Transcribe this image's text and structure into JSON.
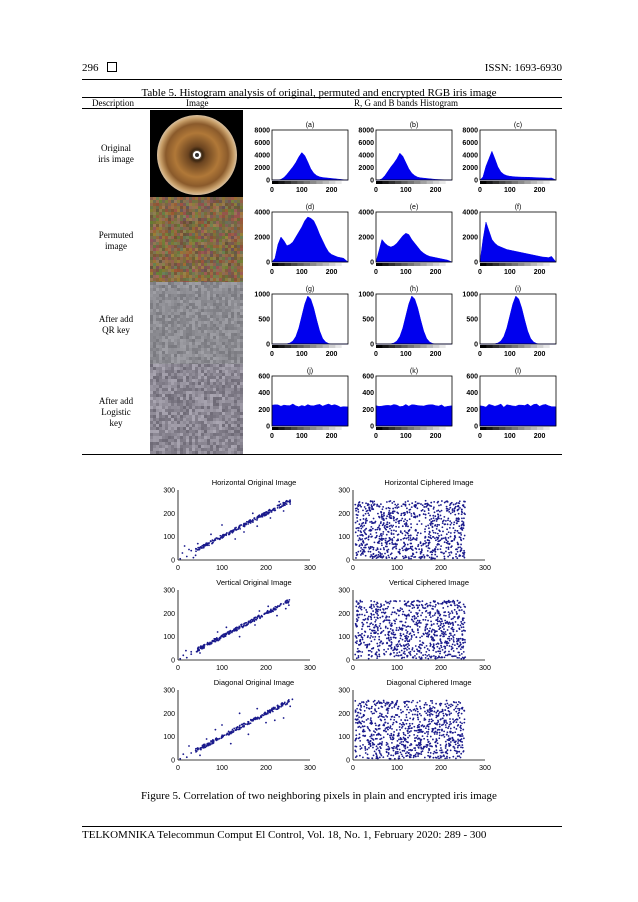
{
  "header": {
    "page_number": "296",
    "issn": "ISSN: 1693-6930"
  },
  "table": {
    "caption": "Table 5. Histogram analysis of original, permuted and encrypted RGB iris image",
    "columns": [
      "Description",
      "Image",
      "R, G and B bands Histogram"
    ],
    "rows": [
      {
        "label": "Original\niris image",
        "panels": [
          "(a)",
          "(b)",
          "(c)"
        ]
      },
      {
        "label": "Permuted\nimage",
        "panels": [
          "(d)",
          "(e)",
          "(f)"
        ]
      },
      {
        "label": "After add\nQR key",
        "panels": [
          "(g)",
          "(h)",
          "(i)"
        ]
      },
      {
        "label": "After add\nLogistic\nkey",
        "panels": [
          "(j)",
          "(k)",
          "(l)"
        ]
      }
    ]
  },
  "colors": {
    "histogram": "#0000ee",
    "scatter": "#1a1a8c",
    "iris_brown": "#8a5a2b",
    "permuted": "#7a6a4a",
    "noise_gray": "#8a8a90"
  },
  "chart_data": [
    {
      "type": "area",
      "panel": "(a)",
      "ylim": [
        0,
        8000
      ],
      "yticks": [
        "0",
        "2000",
        "4000",
        "6000",
        "8000"
      ],
      "xticks": [
        "0",
        "100",
        "200"
      ],
      "x": [
        0,
        10,
        20,
        30,
        40,
        50,
        60,
        70,
        80,
        90,
        100,
        110,
        120,
        130,
        140,
        150,
        160,
        170,
        180,
        190,
        200,
        210,
        220,
        230,
        240,
        255
      ],
      "values": [
        0,
        0,
        0,
        100,
        400,
        900,
        1500,
        2100,
        2800,
        3700,
        4400,
        3900,
        2900,
        1800,
        1100,
        700,
        500,
        400,
        350,
        300,
        250,
        200,
        150,
        100,
        50,
        0
      ]
    },
    {
      "type": "area",
      "panel": "(b)",
      "ylim": [
        0,
        8000
      ],
      "yticks": [
        "0",
        "2000",
        "4000",
        "6000",
        "8000"
      ],
      "xticks": [
        "0",
        "100",
        "200"
      ],
      "x": [
        0,
        10,
        20,
        30,
        40,
        50,
        60,
        70,
        80,
        90,
        100,
        110,
        120,
        130,
        140,
        150,
        160,
        170,
        180,
        190,
        200,
        210,
        220,
        230,
        240,
        255
      ],
      "values": [
        0,
        0,
        200,
        700,
        1400,
        2100,
        2700,
        3400,
        4300,
        3800,
        2800,
        1800,
        1100,
        700,
        450,
        350,
        300,
        250,
        200,
        150,
        100,
        80,
        60,
        40,
        20,
        0
      ]
    },
    {
      "type": "area",
      "panel": "(c)",
      "ylim": [
        0,
        8000
      ],
      "yticks": [
        "0",
        "2000",
        "4000",
        "6000",
        "8000"
      ],
      "xticks": [
        "0",
        "100",
        "200"
      ],
      "x": [
        0,
        10,
        20,
        30,
        40,
        50,
        60,
        70,
        80,
        90,
        100,
        110,
        120,
        130,
        140,
        150,
        160,
        170,
        180,
        190,
        200,
        210,
        220,
        230,
        240,
        255
      ],
      "values": [
        0,
        500,
        2200,
        3400,
        4600,
        3400,
        2100,
        1300,
        900,
        700,
        600,
        550,
        500,
        480,
        460,
        450,
        440,
        420,
        400,
        380,
        360,
        340,
        320,
        300,
        320,
        0
      ]
    },
    {
      "type": "area",
      "panel": "(d)",
      "ylim": [
        0,
        4000
      ],
      "yticks": [
        "0",
        "2000",
        "4000"
      ],
      "xticks": [
        "0",
        "100",
        "200"
      ],
      "x": [
        0,
        10,
        20,
        30,
        40,
        50,
        60,
        70,
        80,
        90,
        100,
        110,
        120,
        130,
        140,
        150,
        160,
        170,
        180,
        190,
        200,
        210,
        220,
        230,
        240,
        255
      ],
      "values": [
        0,
        300,
        1400,
        2000,
        1700,
        1300,
        1400,
        1600,
        2000,
        2400,
        2800,
        3300,
        3600,
        3500,
        3300,
        2800,
        2200,
        1700,
        1200,
        800,
        600,
        500,
        400,
        350,
        300,
        0
      ]
    },
    {
      "type": "area",
      "panel": "(e)",
      "ylim": [
        0,
        4000
      ],
      "yticks": [
        "0",
        "2000",
        "4000"
      ],
      "xticks": [
        "0",
        "100",
        "200"
      ],
      "x": [
        0,
        10,
        20,
        30,
        40,
        50,
        60,
        70,
        80,
        90,
        100,
        110,
        120,
        130,
        140,
        150,
        160,
        170,
        180,
        190,
        200,
        210,
        220,
        230,
        240,
        255
      ],
      "values": [
        0,
        900,
        1800,
        1500,
        1300,
        1200,
        1300,
        1500,
        1800,
        2100,
        2300,
        2200,
        1800,
        1500,
        1200,
        900,
        700,
        550,
        450,
        400,
        350,
        300,
        250,
        200,
        150,
        0
      ]
    },
    {
      "type": "area",
      "panel": "(f)",
      "ylim": [
        0,
        4000
      ],
      "yticks": [
        "0",
        "2000",
        "4000"
      ],
      "xticks": [
        "0",
        "100",
        "200"
      ],
      "x": [
        0,
        10,
        20,
        30,
        40,
        50,
        60,
        70,
        80,
        90,
        100,
        110,
        120,
        130,
        140,
        150,
        160,
        170,
        180,
        190,
        200,
        210,
        220,
        230,
        240,
        255
      ],
      "values": [
        0,
        1800,
        3200,
        2500,
        1800,
        1500,
        1300,
        1200,
        1100,
        1000,
        950,
        900,
        850,
        800,
        750,
        700,
        650,
        600,
        550,
        500,
        450,
        400,
        380,
        350,
        450,
        0
      ]
    },
    {
      "type": "area",
      "panel": "(g)",
      "ylim": [
        0,
        1000
      ],
      "yticks": [
        "0",
        "500",
        "1000"
      ],
      "xticks": [
        "0",
        "100",
        "200"
      ],
      "x": [
        0,
        10,
        20,
        30,
        40,
        50,
        60,
        70,
        80,
        90,
        100,
        110,
        120,
        130,
        140,
        150,
        160,
        170,
        180,
        190,
        200,
        210,
        220,
        230,
        240,
        255
      ],
      "values": [
        0,
        0,
        0,
        0,
        0,
        5,
        20,
        60,
        150,
        320,
        560,
        800,
        960,
        900,
        720,
        480,
        260,
        110,
        40,
        10,
        0,
        0,
        0,
        0,
        0,
        0
      ]
    },
    {
      "type": "area",
      "panel": "(h)",
      "ylim": [
        0,
        1000
      ],
      "yticks": [
        "0",
        "500",
        "1000"
      ],
      "xticks": [
        "0",
        "100",
        "200"
      ],
      "x": [
        0,
        10,
        20,
        30,
        40,
        50,
        60,
        70,
        80,
        90,
        100,
        110,
        120,
        130,
        140,
        150,
        160,
        170,
        180,
        190,
        200,
        210,
        220,
        230,
        240,
        255
      ],
      "values": [
        0,
        0,
        0,
        0,
        0,
        5,
        20,
        60,
        150,
        320,
        560,
        800,
        960,
        900,
        720,
        480,
        260,
        110,
        40,
        10,
        0,
        0,
        0,
        0,
        0,
        0
      ]
    },
    {
      "type": "area",
      "panel": "(i)",
      "ylim": [
        0,
        1000
      ],
      "yticks": [
        "0",
        "500",
        "1000"
      ],
      "xticks": [
        "0",
        "100",
        "200"
      ],
      "x": [
        0,
        10,
        20,
        30,
        40,
        50,
        60,
        70,
        80,
        90,
        100,
        110,
        120,
        130,
        140,
        150,
        160,
        170,
        180,
        190,
        200,
        210,
        220,
        230,
        240,
        255
      ],
      "values": [
        0,
        0,
        0,
        0,
        0,
        5,
        20,
        60,
        150,
        320,
        560,
        800,
        960,
        900,
        720,
        480,
        260,
        110,
        40,
        10,
        0,
        0,
        0,
        0,
        0,
        0
      ]
    },
    {
      "type": "area",
      "panel": "(j)",
      "ylim": [
        0,
        600
      ],
      "yticks": [
        "0",
        "200",
        "400",
        "600"
      ],
      "xticks": [
        "0",
        "100",
        "200"
      ],
      "x": [
        0,
        10,
        20,
        30,
        40,
        50,
        60,
        70,
        80,
        90,
        100,
        110,
        120,
        130,
        140,
        150,
        160,
        170,
        180,
        190,
        200,
        210,
        220,
        230,
        240,
        255
      ],
      "values": [
        240,
        250,
        240,
        245,
        250,
        240,
        245,
        250,
        240,
        245,
        250,
        240,
        245,
        250,
        240,
        245,
        250,
        240,
        245,
        250,
        240,
        245,
        250,
        240,
        245,
        240
      ]
    },
    {
      "type": "area",
      "panel": "(k)",
      "ylim": [
        0,
        600
      ],
      "yticks": [
        "0",
        "200",
        "400",
        "600"
      ],
      "xticks": [
        "0",
        "100",
        "200"
      ],
      "x": [
        0,
        10,
        20,
        30,
        40,
        50,
        60,
        70,
        80,
        90,
        100,
        110,
        120,
        130,
        140,
        150,
        160,
        170,
        180,
        190,
        200,
        210,
        220,
        230,
        240,
        255
      ],
      "values": [
        240,
        250,
        240,
        245,
        250,
        240,
        245,
        250,
        240,
        245,
        250,
        240,
        245,
        250,
        240,
        245,
        250,
        240,
        245,
        250,
        240,
        245,
        250,
        240,
        245,
        240
      ]
    },
    {
      "type": "area",
      "panel": "(l)",
      "ylim": [
        0,
        600
      ],
      "yticks": [
        "0",
        "200",
        "400",
        "600"
      ],
      "xticks": [
        "0",
        "100",
        "200"
      ],
      "x": [
        0,
        10,
        20,
        30,
        40,
        50,
        60,
        70,
        80,
        90,
        100,
        110,
        120,
        130,
        140,
        150,
        160,
        170,
        180,
        190,
        200,
        210,
        220,
        230,
        240,
        255
      ],
      "values": [
        240,
        250,
        240,
        245,
        250,
        240,
        245,
        250,
        240,
        245,
        250,
        240,
        245,
        250,
        240,
        245,
        250,
        240,
        245,
        250,
        240,
        245,
        250,
        240,
        245,
        240
      ]
    },
    {
      "type": "scatter",
      "title": "Horizontal Original Image",
      "xlim": [
        0,
        300
      ],
      "ylim": [
        0,
        300
      ],
      "xticks": [
        "0",
        "100",
        "200",
        "300"
      ],
      "yticks": [
        "0",
        "100",
        "200",
        "300"
      ],
      "x": [
        5,
        10,
        20,
        30,
        45,
        55,
        60,
        70,
        80,
        90,
        100,
        110,
        120,
        130,
        140,
        150,
        160,
        170,
        180,
        190,
        200,
        210,
        220,
        230,
        240,
        250,
        40,
        75,
        130,
        170,
        210,
        240,
        15,
        25,
        100,
        180,
        230,
        255,
        35,
        150
      ],
      "y": [
        5,
        30,
        15,
        40,
        70,
        60,
        62,
        72,
        82,
        92,
        103,
        112,
        121,
        132,
        141,
        152,
        161,
        172,
        182,
        191,
        202,
        212,
        221,
        232,
        241,
        250,
        20,
        110,
        90,
        200,
        180,
        210,
        60,
        45,
        150,
        145,
        250,
        240,
        10,
        120
      ]
    },
    {
      "type": "scatter",
      "title": "Horizontal Ciphered Image",
      "xlim": [
        0,
        300
      ],
      "ylim": [
        0,
        300
      ],
      "xticks": [
        "0",
        "100",
        "200",
        "300"
      ],
      "yticks": [
        "0",
        "100",
        "200",
        "300"
      ],
      "x": [],
      "y": []
    },
    {
      "type": "scatter",
      "title": "Vertical  Original Image",
      "xlim": [
        0,
        300
      ],
      "ylim": [
        0,
        300
      ],
      "xticks": [
        "0",
        "100",
        "200",
        "300"
      ],
      "yticks": [
        "0",
        "100",
        "200",
        "300"
      ],
      "x": [
        5,
        12,
        20,
        30,
        45,
        55,
        60,
        70,
        80,
        90,
        100,
        110,
        120,
        130,
        140,
        150,
        160,
        170,
        180,
        190,
        200,
        210,
        220,
        230,
        240,
        250,
        50,
        90,
        140,
        175,
        205,
        245,
        18,
        30,
        110,
        185,
        225,
        252
      ],
      "y": [
        5,
        20,
        10,
        35,
        50,
        55,
        60,
        70,
        80,
        90,
        101,
        110,
        121,
        130,
        141,
        150,
        160,
        171,
        180,
        190,
        201,
        210,
        220,
        231,
        240,
        251,
        30,
        120,
        100,
        150,
        230,
        220,
        40,
        25,
        140,
        210,
        190,
        235
      ]
    },
    {
      "type": "scatter",
      "title": "Vertical Ciphered Image",
      "xlim": [
        0,
        300
      ],
      "ylim": [
        0,
        300
      ],
      "xticks": [
        "0",
        "100",
        "200",
        "300"
      ],
      "yticks": [
        "0",
        "100",
        "200",
        "300"
      ],
      "x": [],
      "y": []
    },
    {
      "type": "scatter",
      "title": "Diagonal  Original Image",
      "xlim": [
        0,
        300
      ],
      "ylim": [
        0,
        300
      ],
      "xticks": [
        "0",
        "100",
        "200",
        "300"
      ],
      "yticks": [
        "0",
        "100",
        "200",
        "300"
      ],
      "x": [
        5,
        12,
        20,
        30,
        45,
        55,
        60,
        70,
        80,
        90,
        100,
        110,
        120,
        130,
        140,
        150,
        160,
        170,
        180,
        190,
        200,
        210,
        220,
        230,
        240,
        250,
        50,
        85,
        120,
        160,
        200,
        240,
        255,
        25,
        100,
        180,
        220,
        260,
        140,
        65
      ],
      "y": [
        5,
        25,
        12,
        30,
        45,
        55,
        58,
        68,
        80,
        88,
        100,
        108,
        120,
        128,
        140,
        148,
        160,
        168,
        180,
        188,
        200,
        208,
        220,
        228,
        240,
        248,
        20,
        130,
        70,
        110,
        160,
        180,
        230,
        60,
        150,
        220,
        170,
        260,
        200,
        90
      ]
    },
    {
      "type": "scatter",
      "title": "Diagonal Ciphered Image",
      "xlim": [
        0,
        300
      ],
      "ylim": [
        0,
        300
      ],
      "xticks": [
        "0",
        "100",
        "200",
        "300"
      ],
      "yticks": [
        "0",
        "100",
        "200",
        "300"
      ],
      "x": [],
      "y": []
    }
  ],
  "figure": {
    "caption": "Figure 5. Correlation of two neighboring pixels in plain and encrypted iris image"
  },
  "footer": {
    "text": "TELKOMNIKA Telecommun Comput El Control, Vol. 18, No. 1, February 2020:  289 - 300"
  }
}
